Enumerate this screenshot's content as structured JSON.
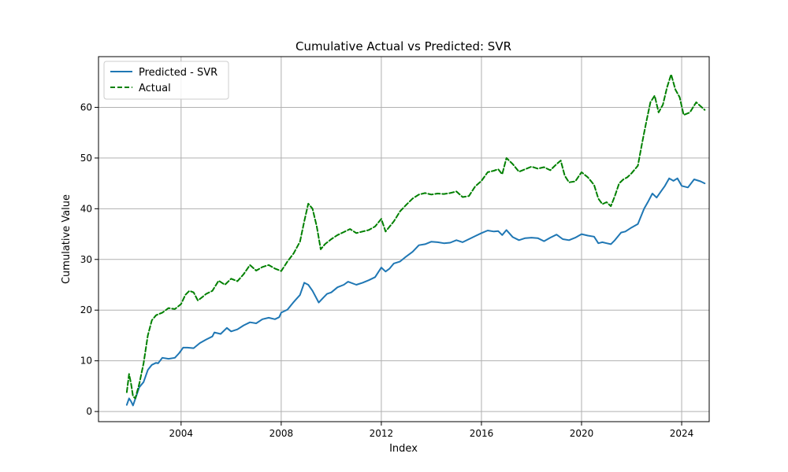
{
  "chart_data": {
    "type": "line",
    "title": "Cumulative Actual vs Predicted: SVR",
    "xlabel": "Index",
    "ylabel": "Cumulative Value",
    "xlim": [
      2000.7,
      2025.1
    ],
    "ylim": [
      -2.0,
      70.0
    ],
    "xticks": [
      2004,
      2008,
      2012,
      2016,
      2020,
      2024
    ],
    "yticks": [
      0,
      10,
      20,
      30,
      40,
      50,
      60
    ],
    "grid": true,
    "legend": "upper left",
    "series": [
      {
        "name": "Predicted - SVR",
        "color": "#1f77b4",
        "style": "solid",
        "points": [
          [
            2001.83,
            1.3
          ],
          [
            2001.92,
            2.6
          ],
          [
            2002.0,
            2.0
          ],
          [
            2002.08,
            1.2
          ],
          [
            2002.17,
            2.5
          ],
          [
            2002.33,
            4.8
          ],
          [
            2002.5,
            5.8
          ],
          [
            2002.67,
            8.2
          ],
          [
            2002.83,
            9.2
          ],
          [
            2003.0,
            9.6
          ],
          [
            2003.08,
            9.5
          ],
          [
            2003.25,
            10.6
          ],
          [
            2003.5,
            10.4
          ],
          [
            2003.75,
            10.6
          ],
          [
            2003.92,
            11.5
          ],
          [
            2004.08,
            12.6
          ],
          [
            2004.25,
            12.6
          ],
          [
            2004.5,
            12.5
          ],
          [
            2004.75,
            13.5
          ],
          [
            2005.0,
            14.2
          ],
          [
            2005.25,
            14.8
          ],
          [
            2005.33,
            15.6
          ],
          [
            2005.58,
            15.3
          ],
          [
            2005.83,
            16.5
          ],
          [
            2006.0,
            15.8
          ],
          [
            2006.25,
            16.2
          ],
          [
            2006.5,
            17.0
          ],
          [
            2006.75,
            17.6
          ],
          [
            2007.0,
            17.4
          ],
          [
            2007.25,
            18.2
          ],
          [
            2007.5,
            18.5
          ],
          [
            2007.75,
            18.2
          ],
          [
            2007.92,
            18.6
          ],
          [
            2008.0,
            19.5
          ],
          [
            2008.25,
            20.1
          ],
          [
            2008.5,
            21.6
          ],
          [
            2008.75,
            23.0
          ],
          [
            2008.92,
            25.4
          ],
          [
            2009.08,
            25.0
          ],
          [
            2009.25,
            23.8
          ],
          [
            2009.5,
            21.5
          ],
          [
            2009.67,
            22.4
          ],
          [
            2009.83,
            23.2
          ],
          [
            2010.0,
            23.5
          ],
          [
            2010.25,
            24.5
          ],
          [
            2010.5,
            25.0
          ],
          [
            2010.67,
            25.6
          ],
          [
            2011.0,
            25.0
          ],
          [
            2011.25,
            25.4
          ],
          [
            2011.5,
            25.9
          ],
          [
            2011.75,
            26.5
          ],
          [
            2012.0,
            28.4
          ],
          [
            2012.17,
            27.6
          ],
          [
            2012.33,
            28.2
          ],
          [
            2012.5,
            29.2
          ],
          [
            2012.75,
            29.6
          ],
          [
            2013.0,
            30.6
          ],
          [
            2013.25,
            31.5
          ],
          [
            2013.5,
            32.8
          ],
          [
            2013.75,
            33.0
          ],
          [
            2014.0,
            33.5
          ],
          [
            2014.25,
            33.4
          ],
          [
            2014.5,
            33.2
          ],
          [
            2014.75,
            33.3
          ],
          [
            2015.0,
            33.8
          ],
          [
            2015.25,
            33.4
          ],
          [
            2015.5,
            34.0
          ],
          [
            2015.75,
            34.6
          ],
          [
            2016.0,
            35.2
          ],
          [
            2016.25,
            35.7
          ],
          [
            2016.5,
            35.5
          ],
          [
            2016.67,
            35.6
          ],
          [
            2016.83,
            34.8
          ],
          [
            2017.0,
            35.8
          ],
          [
            2017.25,
            34.4
          ],
          [
            2017.5,
            33.8
          ],
          [
            2017.75,
            34.2
          ],
          [
            2018.0,
            34.3
          ],
          [
            2018.25,
            34.2
          ],
          [
            2018.5,
            33.6
          ],
          [
            2018.75,
            34.3
          ],
          [
            2019.0,
            34.9
          ],
          [
            2019.25,
            34.0
          ],
          [
            2019.5,
            33.8
          ],
          [
            2019.75,
            34.3
          ],
          [
            2020.0,
            35.0
          ],
          [
            2020.25,
            34.7
          ],
          [
            2020.5,
            34.5
          ],
          [
            2020.67,
            33.2
          ],
          [
            2020.83,
            33.4
          ],
          [
            2021.0,
            33.2
          ],
          [
            2021.17,
            33.0
          ],
          [
            2021.33,
            33.8
          ],
          [
            2021.58,
            35.3
          ],
          [
            2021.75,
            35.5
          ],
          [
            2022.0,
            36.3
          ],
          [
            2022.25,
            37.0
          ],
          [
            2022.5,
            40.0
          ],
          [
            2022.67,
            41.5
          ],
          [
            2022.83,
            43.0
          ],
          [
            2023.0,
            42.2
          ],
          [
            2023.17,
            43.4
          ],
          [
            2023.33,
            44.5
          ],
          [
            2023.5,
            46.0
          ],
          [
            2023.67,
            45.5
          ],
          [
            2023.83,
            46.0
          ],
          [
            2024.0,
            44.5
          ],
          [
            2024.25,
            44.2
          ],
          [
            2024.5,
            45.8
          ],
          [
            2024.75,
            45.4
          ],
          [
            2024.92,
            45.0
          ]
        ]
      },
      {
        "name": "Actual",
        "color": "#008000",
        "style": "dashed",
        "points": [
          [
            2001.83,
            3.8
          ],
          [
            2001.92,
            7.4
          ],
          [
            2002.0,
            5.5
          ],
          [
            2002.08,
            3.0
          ],
          [
            2002.17,
            2.6
          ],
          [
            2002.33,
            5.5
          ],
          [
            2002.5,
            9.5
          ],
          [
            2002.67,
            15.0
          ],
          [
            2002.83,
            18.0
          ],
          [
            2003.0,
            19.0
          ],
          [
            2003.25,
            19.5
          ],
          [
            2003.5,
            20.4
          ],
          [
            2003.75,
            20.2
          ],
          [
            2004.0,
            21.2
          ],
          [
            2004.17,
            23.0
          ],
          [
            2004.33,
            23.8
          ],
          [
            2004.5,
            23.5
          ],
          [
            2004.67,
            21.9
          ],
          [
            2004.83,
            22.5
          ],
          [
            2005.0,
            23.2
          ],
          [
            2005.25,
            23.8
          ],
          [
            2005.5,
            25.8
          ],
          [
            2005.75,
            25.0
          ],
          [
            2006.0,
            26.2
          ],
          [
            2006.25,
            25.7
          ],
          [
            2006.5,
            27.1
          ],
          [
            2006.75,
            28.9
          ],
          [
            2007.0,
            27.8
          ],
          [
            2007.25,
            28.5
          ],
          [
            2007.5,
            28.9
          ],
          [
            2007.75,
            28.2
          ],
          [
            2008.0,
            27.7
          ],
          [
            2008.25,
            29.6
          ],
          [
            2008.5,
            31.2
          ],
          [
            2008.75,
            33.5
          ],
          [
            2008.92,
            37.5
          ],
          [
            2009.08,
            41.0
          ],
          [
            2009.25,
            40.0
          ],
          [
            2009.42,
            36.5
          ],
          [
            2009.58,
            32.0
          ],
          [
            2009.75,
            33.0
          ],
          [
            2010.0,
            34.0
          ],
          [
            2010.25,
            34.8
          ],
          [
            2010.5,
            35.4
          ],
          [
            2010.75,
            36.0
          ],
          [
            2011.0,
            35.2
          ],
          [
            2011.25,
            35.5
          ],
          [
            2011.5,
            35.8
          ],
          [
            2011.75,
            36.5
          ],
          [
            2012.0,
            38.0
          ],
          [
            2012.17,
            35.5
          ],
          [
            2012.5,
            37.5
          ],
          [
            2012.75,
            39.5
          ],
          [
            2013.0,
            40.8
          ],
          [
            2013.25,
            42.0
          ],
          [
            2013.5,
            42.8
          ],
          [
            2013.75,
            43.1
          ],
          [
            2014.0,
            42.8
          ],
          [
            2014.25,
            43.0
          ],
          [
            2014.5,
            42.9
          ],
          [
            2014.75,
            43.1
          ],
          [
            2015.0,
            43.4
          ],
          [
            2015.25,
            42.3
          ],
          [
            2015.5,
            42.5
          ],
          [
            2015.75,
            44.4
          ],
          [
            2016.0,
            45.5
          ],
          [
            2016.25,
            47.2
          ],
          [
            2016.5,
            47.5
          ],
          [
            2016.67,
            47.8
          ],
          [
            2016.83,
            46.8
          ],
          [
            2017.0,
            50.0
          ],
          [
            2017.25,
            48.8
          ],
          [
            2017.5,
            47.3
          ],
          [
            2017.75,
            47.8
          ],
          [
            2018.0,
            48.3
          ],
          [
            2018.25,
            47.9
          ],
          [
            2018.5,
            48.2
          ],
          [
            2018.75,
            47.6
          ],
          [
            2019.0,
            48.8
          ],
          [
            2019.17,
            49.5
          ],
          [
            2019.33,
            46.5
          ],
          [
            2019.5,
            45.2
          ],
          [
            2019.75,
            45.4
          ],
          [
            2020.0,
            47.2
          ],
          [
            2020.25,
            46.2
          ],
          [
            2020.5,
            44.7
          ],
          [
            2020.67,
            42.0
          ],
          [
            2020.83,
            40.9
          ],
          [
            2021.0,
            41.3
          ],
          [
            2021.17,
            40.5
          ],
          [
            2021.33,
            42.5
          ],
          [
            2021.5,
            45.0
          ],
          [
            2021.67,
            45.8
          ],
          [
            2021.83,
            46.2
          ],
          [
            2022.0,
            47.0
          ],
          [
            2022.25,
            48.5
          ],
          [
            2022.42,
            53.0
          ],
          [
            2022.58,
            57.0
          ],
          [
            2022.75,
            61.0
          ],
          [
            2022.92,
            62.3
          ],
          [
            2023.08,
            59.0
          ],
          [
            2023.25,
            60.5
          ],
          [
            2023.42,
            64.0
          ],
          [
            2023.58,
            66.5
          ],
          [
            2023.75,
            63.5
          ],
          [
            2023.92,
            62.0
          ],
          [
            2024.08,
            58.5
          ],
          [
            2024.33,
            59.0
          ],
          [
            2024.58,
            61.0
          ],
          [
            2024.92,
            59.5
          ]
        ]
      }
    ]
  }
}
